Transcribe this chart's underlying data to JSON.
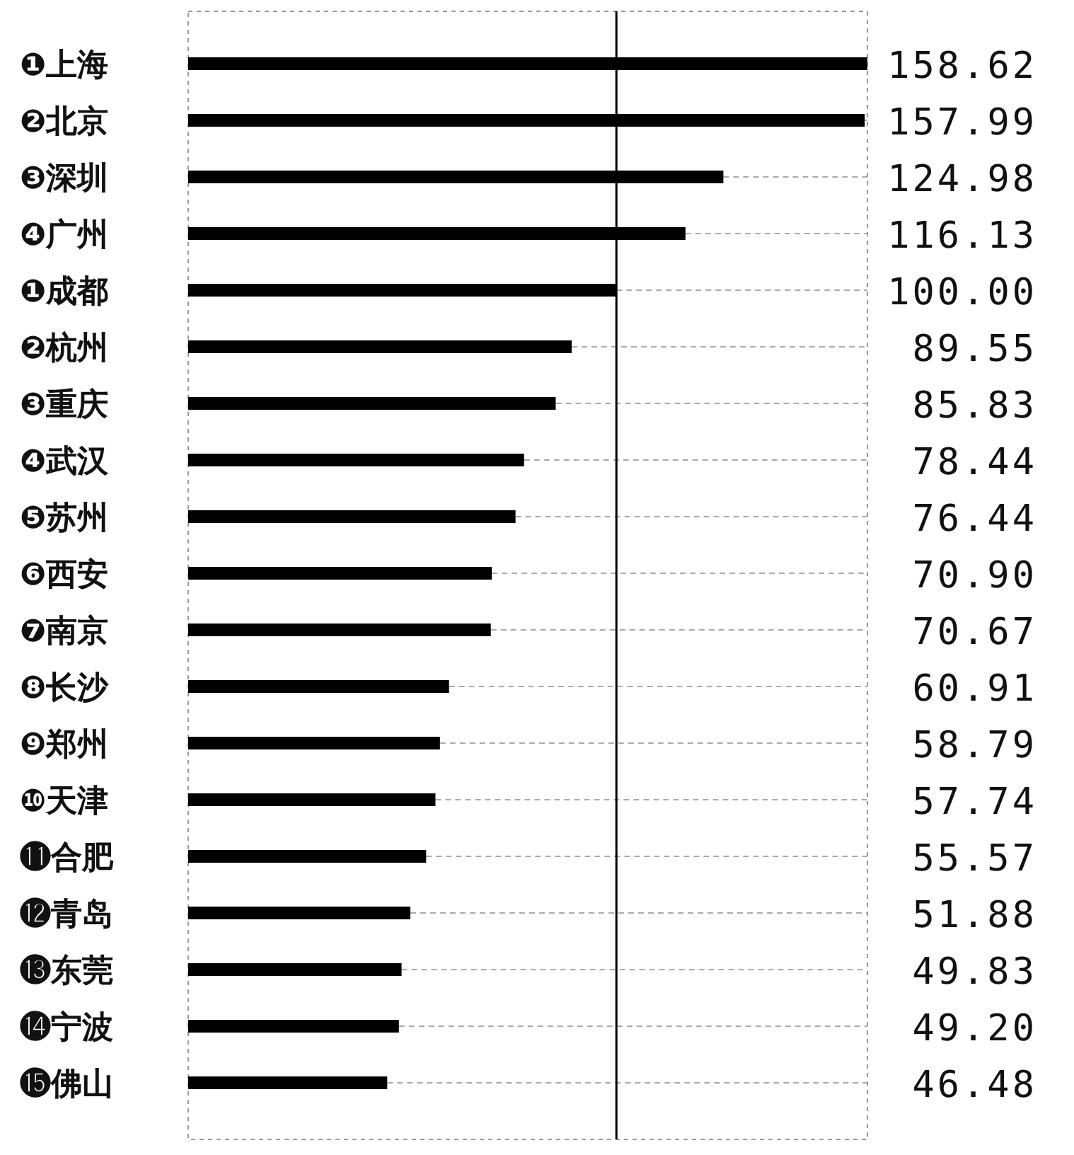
{
  "chart_data": {
    "type": "bar",
    "orientation": "horizontal",
    "categories": [
      "❶上海",
      "❷北京",
      "❸深圳",
      "❹广州",
      "❶成都",
      "❷杭州",
      "❸重庆",
      "❹武汉",
      "❺苏州",
      "❻西安",
      "❼南京",
      "❽长沙",
      "❾郑州",
      "❿天津",
      "⓫合肥",
      "⓬青岛",
      "⓭东莞",
      "⓮宁波",
      "⓯佛山"
    ],
    "values": [
      158.62,
      157.99,
      124.98,
      116.13,
      100.0,
      89.55,
      85.83,
      78.44,
      76.44,
      70.9,
      70.67,
      60.91,
      58.79,
      57.74,
      55.57,
      51.88,
      49.83,
      49.2,
      46.48
    ],
    "value_labels": [
      "158.62",
      "157.99",
      "124.98",
      "116.13",
      "100.00",
      "89.55",
      "85.83",
      "78.44",
      "76.44",
      "70.90",
      "70.67",
      "60.91",
      "58.79",
      "57.74",
      "55.57",
      "51.88",
      "49.83",
      "49.20",
      "46.48"
    ],
    "color": "#000000",
    "xlim": [
      0,
      158.62
    ],
    "grid": "y",
    "ref_lines": [
      {
        "axis": "x",
        "value": 100,
        "color": "#000000"
      }
    ]
  }
}
